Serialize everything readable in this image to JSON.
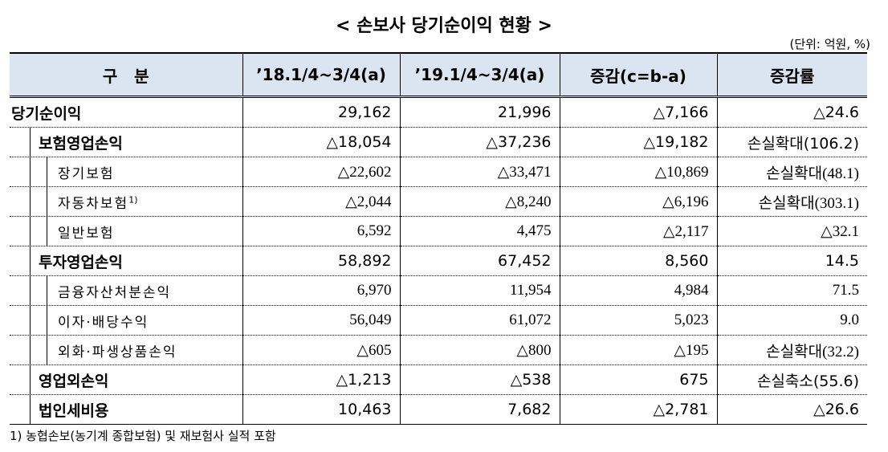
{
  "title": "< 손보사 당기순이익 현황 >",
  "unit": "(단위: 억원, %)",
  "table": {
    "header": [
      "구   분",
      "’18.1/4~3/4(a)",
      "’19.1/4~3/4(a)",
      "증감(c=b-a)",
      "증감률"
    ],
    "rows": [
      {
        "label": "당기순이익",
        "values": [
          "29,162",
          "21,996",
          "△7,166",
          "△24.6"
        ],
        "children": [
          {
            "label": "보험영업손익",
            "values": [
              "△18,054",
              "△37,236",
              "△19,182",
              "손실확대(106.2)"
            ],
            "children": [
              {
                "label": "장기보험",
                "values": [
                  "△22,602",
                  "△33,471",
                  "△10,869",
                  "손실확대(48.1)"
                ]
              },
              {
                "label": "자동차보험",
                "note": "1)",
                "values": [
                  "△2,044",
                  "△8,240",
                  "△6,196",
                  "손실확대(303.1)"
                ]
              },
              {
                "label": "일반보험",
                "values": [
                  "6,592",
                  "4,475",
                  "△2,117",
                  "△32.1"
                ]
              }
            ]
          },
          {
            "label": "투자영업손익",
            "values": [
              "58,892",
              "67,452",
              "8,560",
              "14.5"
            ],
            "children": [
              {
                "label": "금융자산처분손익",
                "values": [
                  "6,970",
                  "11,954",
                  "4,984",
                  "71.5"
                ]
              },
              {
                "label": "이자·배당수익",
                "values": [
                  "56,049",
                  "61,072",
                  "5,023",
                  "9.0"
                ]
              },
              {
                "label": "외화·파생상품손익",
                "values": [
                  "△605",
                  "△800",
                  "△195",
                  "손실확대(32.2)"
                ]
              }
            ]
          },
          {
            "label": "영업외손익",
            "values": [
              "△1,213",
              "△538",
              "675",
              "손실축소(55.6)"
            ]
          },
          {
            "label": "법인세비용",
            "values": [
              "10,463",
              "7,682",
              "△2,781",
              "△26.6"
            ]
          }
        ]
      }
    ]
  },
  "footnote": "1) 농협손보(농기계 종합보험) 및 재보험사 실적 포함"
}
